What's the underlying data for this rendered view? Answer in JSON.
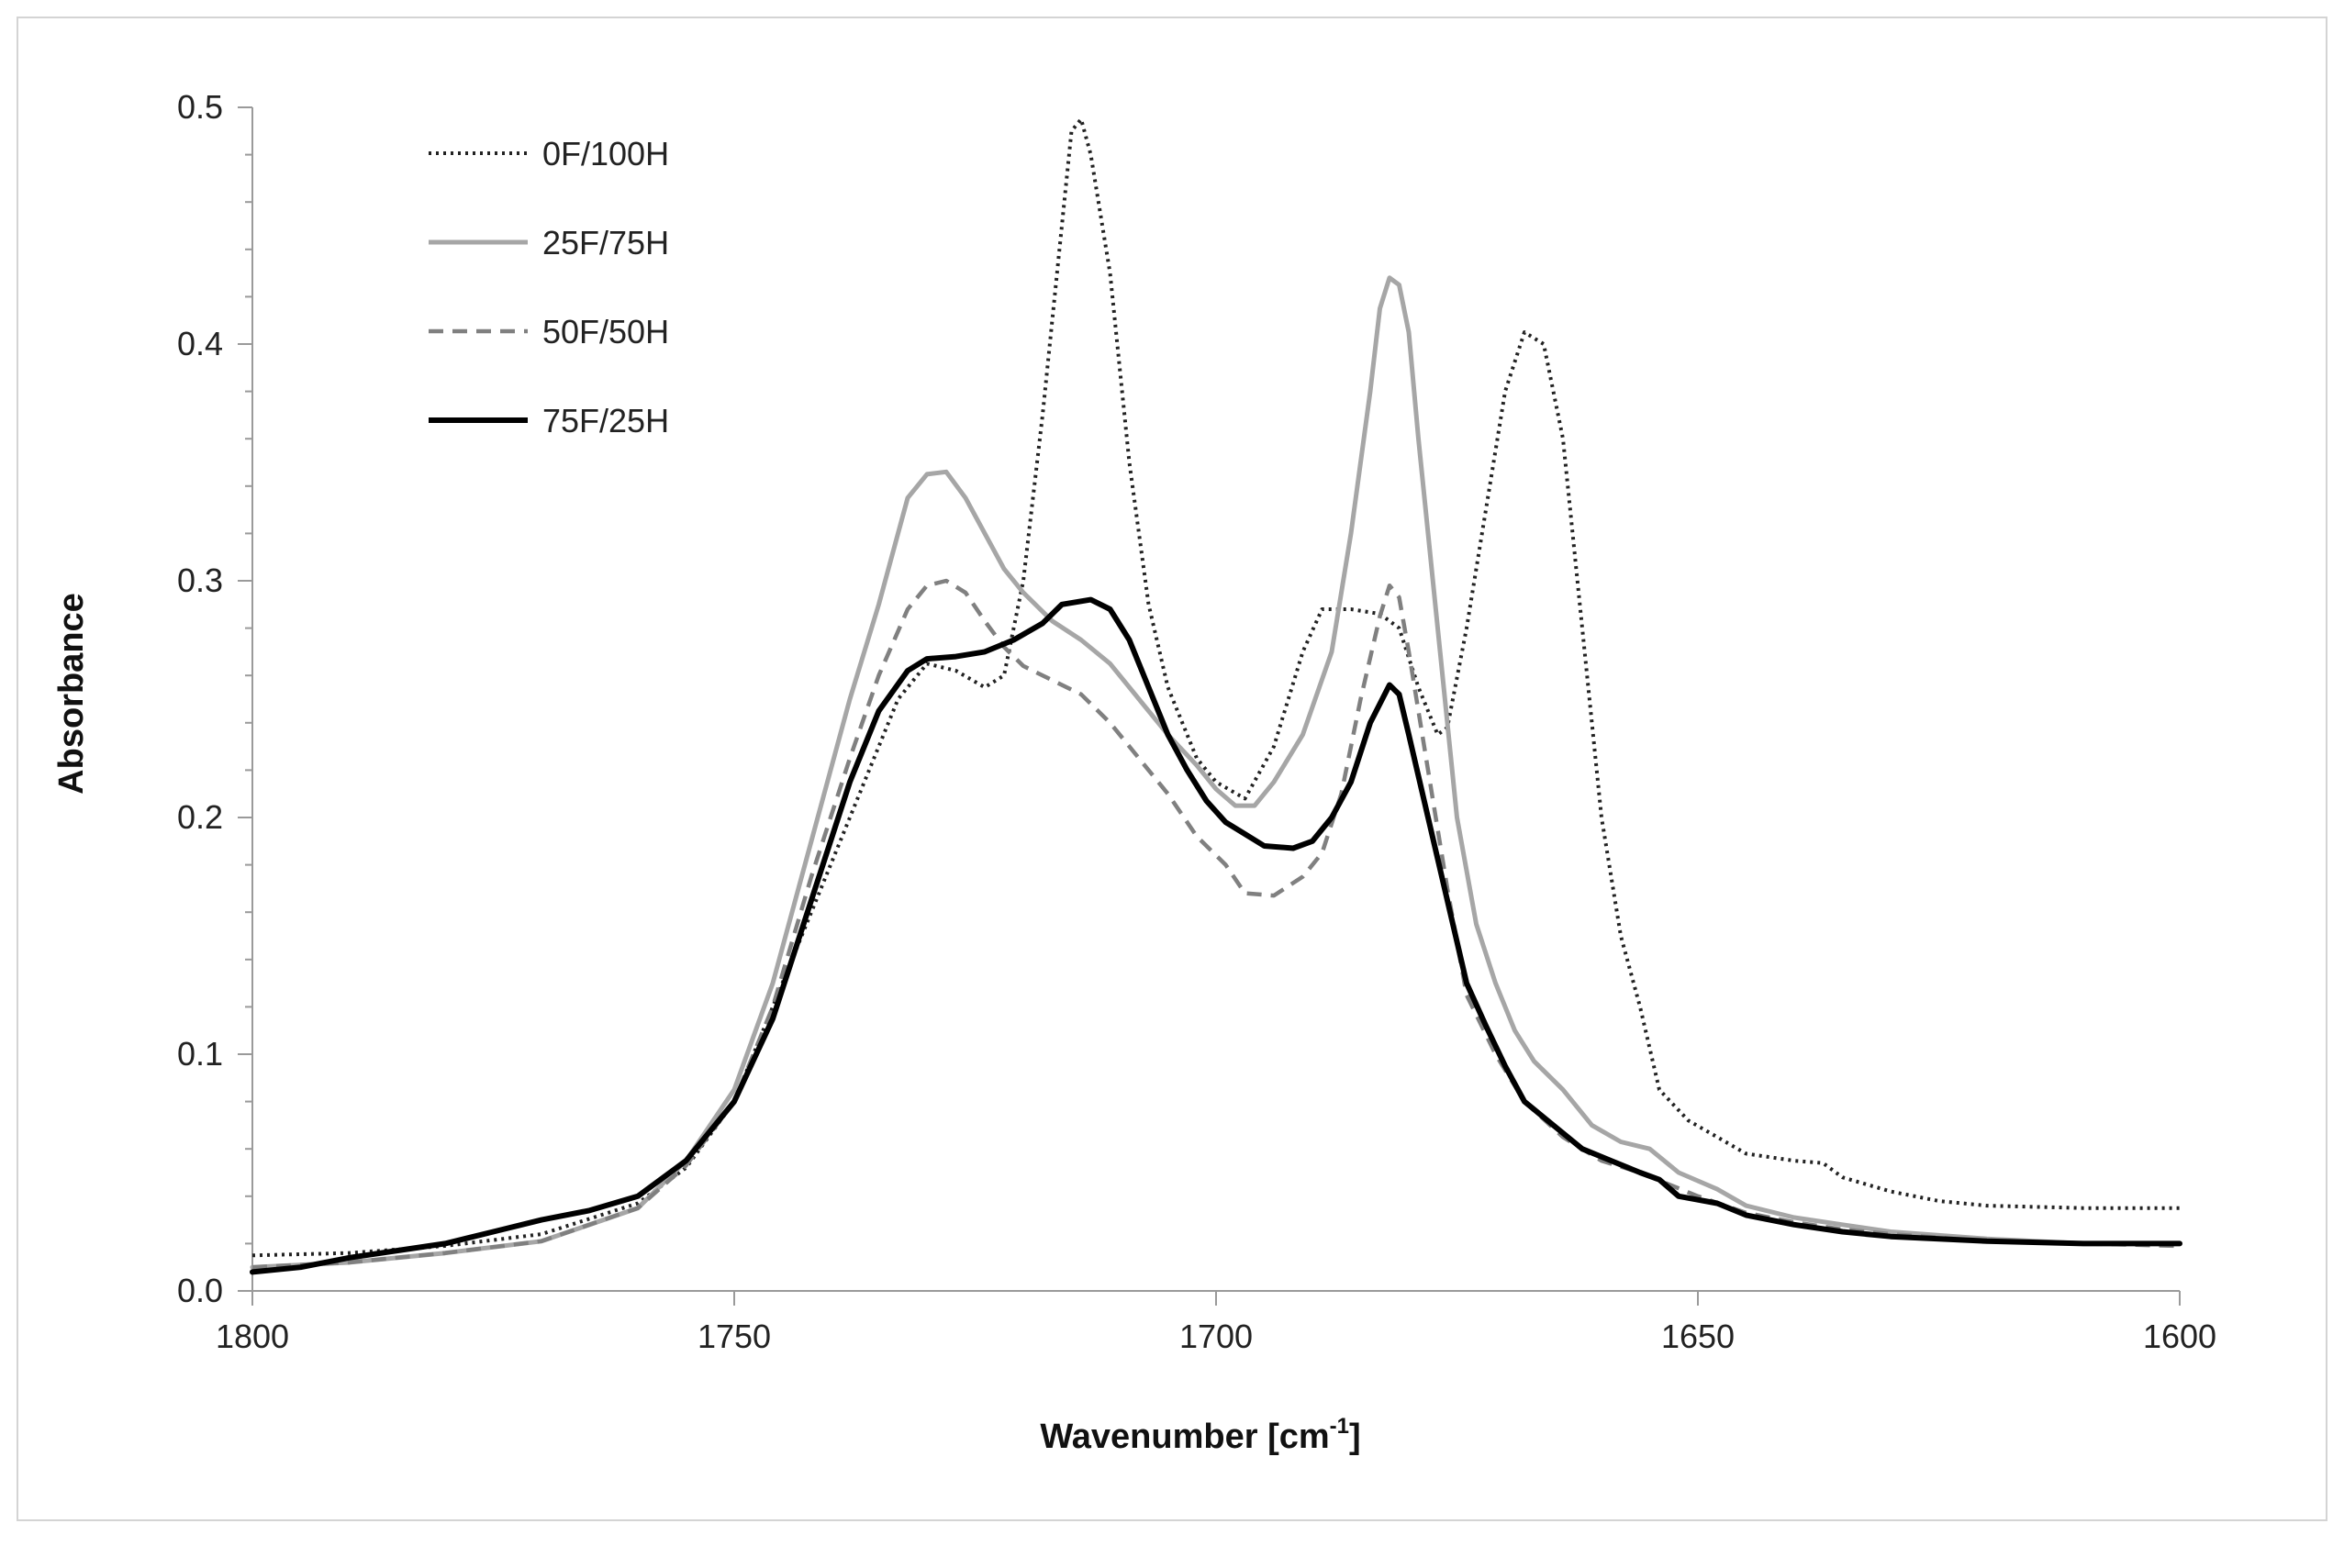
{
  "chart_data": {
    "type": "line",
    "title": "",
    "xlabel": "Wavenumber [cm",
    "xlabel_superscript": "-1",
    "xlabel_suffix": "]",
    "ylabel": "Absorbance",
    "xlim": [
      1800,
      1600
    ],
    "x_reversed": true,
    "ylim": [
      0,
      0.5
    ],
    "x_ticks": [
      1800,
      1750,
      1700,
      1650,
      1600
    ],
    "x_tick_labels": [
      "1800",
      "1750",
      "1700",
      "1650",
      "1600"
    ],
    "y_ticks": [
      0,
      0.1,
      0.2,
      0.3,
      0.4,
      0.5
    ],
    "y_tick_labels": [
      "0.0",
      "0.1",
      "0.2",
      "0.3",
      "0.4",
      "0.5"
    ],
    "y_minor_step": 0.02,
    "grid": false,
    "legend_position": "top-left",
    "series": [
      {
        "name": "0F/100H",
        "color": "#222222",
        "style": "dotted",
        "points": [
          [
            1800,
            0.015
          ],
          [
            1790,
            0.016
          ],
          [
            1780,
            0.019
          ],
          [
            1770,
            0.024
          ],
          [
            1760,
            0.037
          ],
          [
            1755,
            0.052
          ],
          [
            1750,
            0.08
          ],
          [
            1745,
            0.13
          ],
          [
            1740,
            0.18
          ],
          [
            1736,
            0.22
          ],
          [
            1733,
            0.25
          ],
          [
            1730,
            0.265
          ],
          [
            1727,
            0.262
          ],
          [
            1724,
            0.255
          ],
          [
            1722,
            0.26
          ],
          [
            1720,
            0.3
          ],
          [
            1718,
            0.37
          ],
          [
            1716,
            0.45
          ],
          [
            1715,
            0.49
          ],
          [
            1714,
            0.495
          ],
          [
            1713,
            0.48
          ],
          [
            1711,
            0.43
          ],
          [
            1709,
            0.35
          ],
          [
            1707,
            0.29
          ],
          [
            1705,
            0.255
          ],
          [
            1702,
            0.225
          ],
          [
            1700,
            0.215
          ],
          [
            1697,
            0.208
          ],
          [
            1694,
            0.23
          ],
          [
            1691,
            0.27
          ],
          [
            1689,
            0.288
          ],
          [
            1686,
            0.288
          ],
          [
            1683,
            0.286
          ],
          [
            1681,
            0.28
          ],
          [
            1679,
            0.255
          ],
          [
            1677,
            0.235
          ],
          [
            1676,
            0.238
          ],
          [
            1674,
            0.28
          ],
          [
            1672,
            0.33
          ],
          [
            1670,
            0.38
          ],
          [
            1668,
            0.405
          ],
          [
            1666,
            0.4
          ],
          [
            1664,
            0.36
          ],
          [
            1662,
            0.28
          ],
          [
            1660,
            0.2
          ],
          [
            1658,
            0.15
          ],
          [
            1656,
            0.12
          ],
          [
            1654,
            0.085
          ],
          [
            1651,
            0.072
          ],
          [
            1648,
            0.065
          ],
          [
            1645,
            0.058
          ],
          [
            1640,
            0.055
          ],
          [
            1637,
            0.054
          ],
          [
            1635,
            0.048
          ],
          [
            1630,
            0.042
          ],
          [
            1625,
            0.038
          ],
          [
            1620,
            0.036
          ],
          [
            1610,
            0.035
          ],
          [
            1600,
            0.035
          ]
        ]
      },
      {
        "name": "25F/75H",
        "color": "#a6a6a6",
        "style": "solid",
        "points": [
          [
            1800,
            0.01
          ],
          [
            1790,
            0.012
          ],
          [
            1780,
            0.016
          ],
          [
            1770,
            0.021
          ],
          [
            1760,
            0.035
          ],
          [
            1755,
            0.055
          ],
          [
            1750,
            0.085
          ],
          [
            1746,
            0.13
          ],
          [
            1742,
            0.19
          ],
          [
            1738,
            0.25
          ],
          [
            1735,
            0.29
          ],
          [
            1732,
            0.335
          ],
          [
            1730,
            0.345
          ],
          [
            1728,
            0.346
          ],
          [
            1726,
            0.335
          ],
          [
            1724,
            0.32
          ],
          [
            1722,
            0.305
          ],
          [
            1720,
            0.295
          ],
          [
            1717,
            0.283
          ],
          [
            1714,
            0.275
          ],
          [
            1711,
            0.265
          ],
          [
            1708,
            0.25
          ],
          [
            1705,
            0.235
          ],
          [
            1702,
            0.222
          ],
          [
            1700,
            0.212
          ],
          [
            1698,
            0.205
          ],
          [
            1696,
            0.205
          ],
          [
            1694,
            0.215
          ],
          [
            1691,
            0.235
          ],
          [
            1688,
            0.27
          ],
          [
            1686,
            0.32
          ],
          [
            1684,
            0.38
          ],
          [
            1683,
            0.415
          ],
          [
            1682,
            0.428
          ],
          [
            1681,
            0.425
          ],
          [
            1680,
            0.405
          ],
          [
            1679,
            0.36
          ],
          [
            1677,
            0.28
          ],
          [
            1675,
            0.2
          ],
          [
            1673,
            0.155
          ],
          [
            1671,
            0.13
          ],
          [
            1669,
            0.11
          ],
          [
            1667,
            0.097
          ],
          [
            1664,
            0.085
          ],
          [
            1661,
            0.07
          ],
          [
            1658,
            0.063
          ],
          [
            1655,
            0.06
          ],
          [
            1652,
            0.05
          ],
          [
            1648,
            0.043
          ],
          [
            1645,
            0.036
          ],
          [
            1640,
            0.031
          ],
          [
            1635,
            0.028
          ],
          [
            1630,
            0.025
          ],
          [
            1620,
            0.022
          ],
          [
            1610,
            0.02
          ],
          [
            1600,
            0.02
          ]
        ]
      },
      {
        "name": "50F/50H",
        "color": "#808080",
        "style": "dashed",
        "points": [
          [
            1800,
            0.01
          ],
          [
            1790,
            0.012
          ],
          [
            1780,
            0.016
          ],
          [
            1770,
            0.021
          ],
          [
            1760,
            0.035
          ],
          [
            1755,
            0.053
          ],
          [
            1750,
            0.08
          ],
          [
            1746,
            0.12
          ],
          [
            1742,
            0.175
          ],
          [
            1738,
            0.225
          ],
          [
            1735,
            0.26
          ],
          [
            1732,
            0.288
          ],
          [
            1730,
            0.298
          ],
          [
            1728,
            0.3
          ],
          [
            1726,
            0.295
          ],
          [
            1724,
            0.283
          ],
          [
            1722,
            0.272
          ],
          [
            1720,
            0.264
          ],
          [
            1717,
            0.258
          ],
          [
            1714,
            0.252
          ],
          [
            1711,
            0.24
          ],
          [
            1708,
            0.225
          ],
          [
            1705,
            0.21
          ],
          [
            1702,
            0.192
          ],
          [
            1699,
            0.18
          ],
          [
            1697,
            0.168
          ],
          [
            1694,
            0.167
          ],
          [
            1691,
            0.175
          ],
          [
            1689,
            0.185
          ],
          [
            1687,
            0.21
          ],
          [
            1685,
            0.25
          ],
          [
            1683,
            0.285
          ],
          [
            1682,
            0.298
          ],
          [
            1681,
            0.293
          ],
          [
            1680,
            0.27
          ],
          [
            1678,
            0.22
          ],
          [
            1676,
            0.17
          ],
          [
            1674,
            0.125
          ],
          [
            1671,
            0.1
          ],
          [
            1668,
            0.08
          ],
          [
            1664,
            0.065
          ],
          [
            1660,
            0.055
          ],
          [
            1656,
            0.05
          ],
          [
            1653,
            0.045
          ],
          [
            1650,
            0.04
          ],
          [
            1645,
            0.033
          ],
          [
            1640,
            0.029
          ],
          [
            1635,
            0.026
          ],
          [
            1630,
            0.024
          ],
          [
            1620,
            0.021
          ],
          [
            1610,
            0.02
          ],
          [
            1600,
            0.019
          ]
        ]
      },
      {
        "name": "75F/25H",
        "color": "#000000",
        "style": "solid-thick",
        "points": [
          [
            1800,
            0.008
          ],
          [
            1795,
            0.01
          ],
          [
            1790,
            0.014
          ],
          [
            1785,
            0.017
          ],
          [
            1780,
            0.02
          ],
          [
            1775,
            0.025
          ],
          [
            1770,
            0.03
          ],
          [
            1765,
            0.034
          ],
          [
            1760,
            0.04
          ],
          [
            1755,
            0.055
          ],
          [
            1750,
            0.08
          ],
          [
            1746,
            0.115
          ],
          [
            1742,
            0.165
          ],
          [
            1738,
            0.215
          ],
          [
            1735,
            0.245
          ],
          [
            1732,
            0.262
          ],
          [
            1730,
            0.267
          ],
          [
            1727,
            0.268
          ],
          [
            1724,
            0.27
          ],
          [
            1721,
            0.275
          ],
          [
            1718,
            0.282
          ],
          [
            1716,
            0.29
          ],
          [
            1713,
            0.292
          ],
          [
            1711,
            0.288
          ],
          [
            1709,
            0.275
          ],
          [
            1707,
            0.255
          ],
          [
            1705,
            0.235
          ],
          [
            1703,
            0.22
          ],
          [
            1701,
            0.207
          ],
          [
            1699,
            0.198
          ],
          [
            1697,
            0.193
          ],
          [
            1695,
            0.188
          ],
          [
            1692,
            0.187
          ],
          [
            1690,
            0.19
          ],
          [
            1688,
            0.2
          ],
          [
            1686,
            0.215
          ],
          [
            1684,
            0.24
          ],
          [
            1682,
            0.256
          ],
          [
            1681,
            0.252
          ],
          [
            1680,
            0.235
          ],
          [
            1678,
            0.2
          ],
          [
            1676,
            0.165
          ],
          [
            1674,
            0.13
          ],
          [
            1672,
            0.112
          ],
          [
            1670,
            0.095
          ],
          [
            1668,
            0.08
          ],
          [
            1665,
            0.07
          ],
          [
            1662,
            0.06
          ],
          [
            1659,
            0.055
          ],
          [
            1656,
            0.05
          ],
          [
            1654,
            0.047
          ],
          [
            1652,
            0.04
          ],
          [
            1648,
            0.037
          ],
          [
            1645,
            0.032
          ],
          [
            1640,
            0.028
          ],
          [
            1635,
            0.025
          ],
          [
            1630,
            0.023
          ],
          [
            1620,
            0.021
          ],
          [
            1610,
            0.02
          ],
          [
            1600,
            0.02
          ]
        ]
      }
    ]
  }
}
